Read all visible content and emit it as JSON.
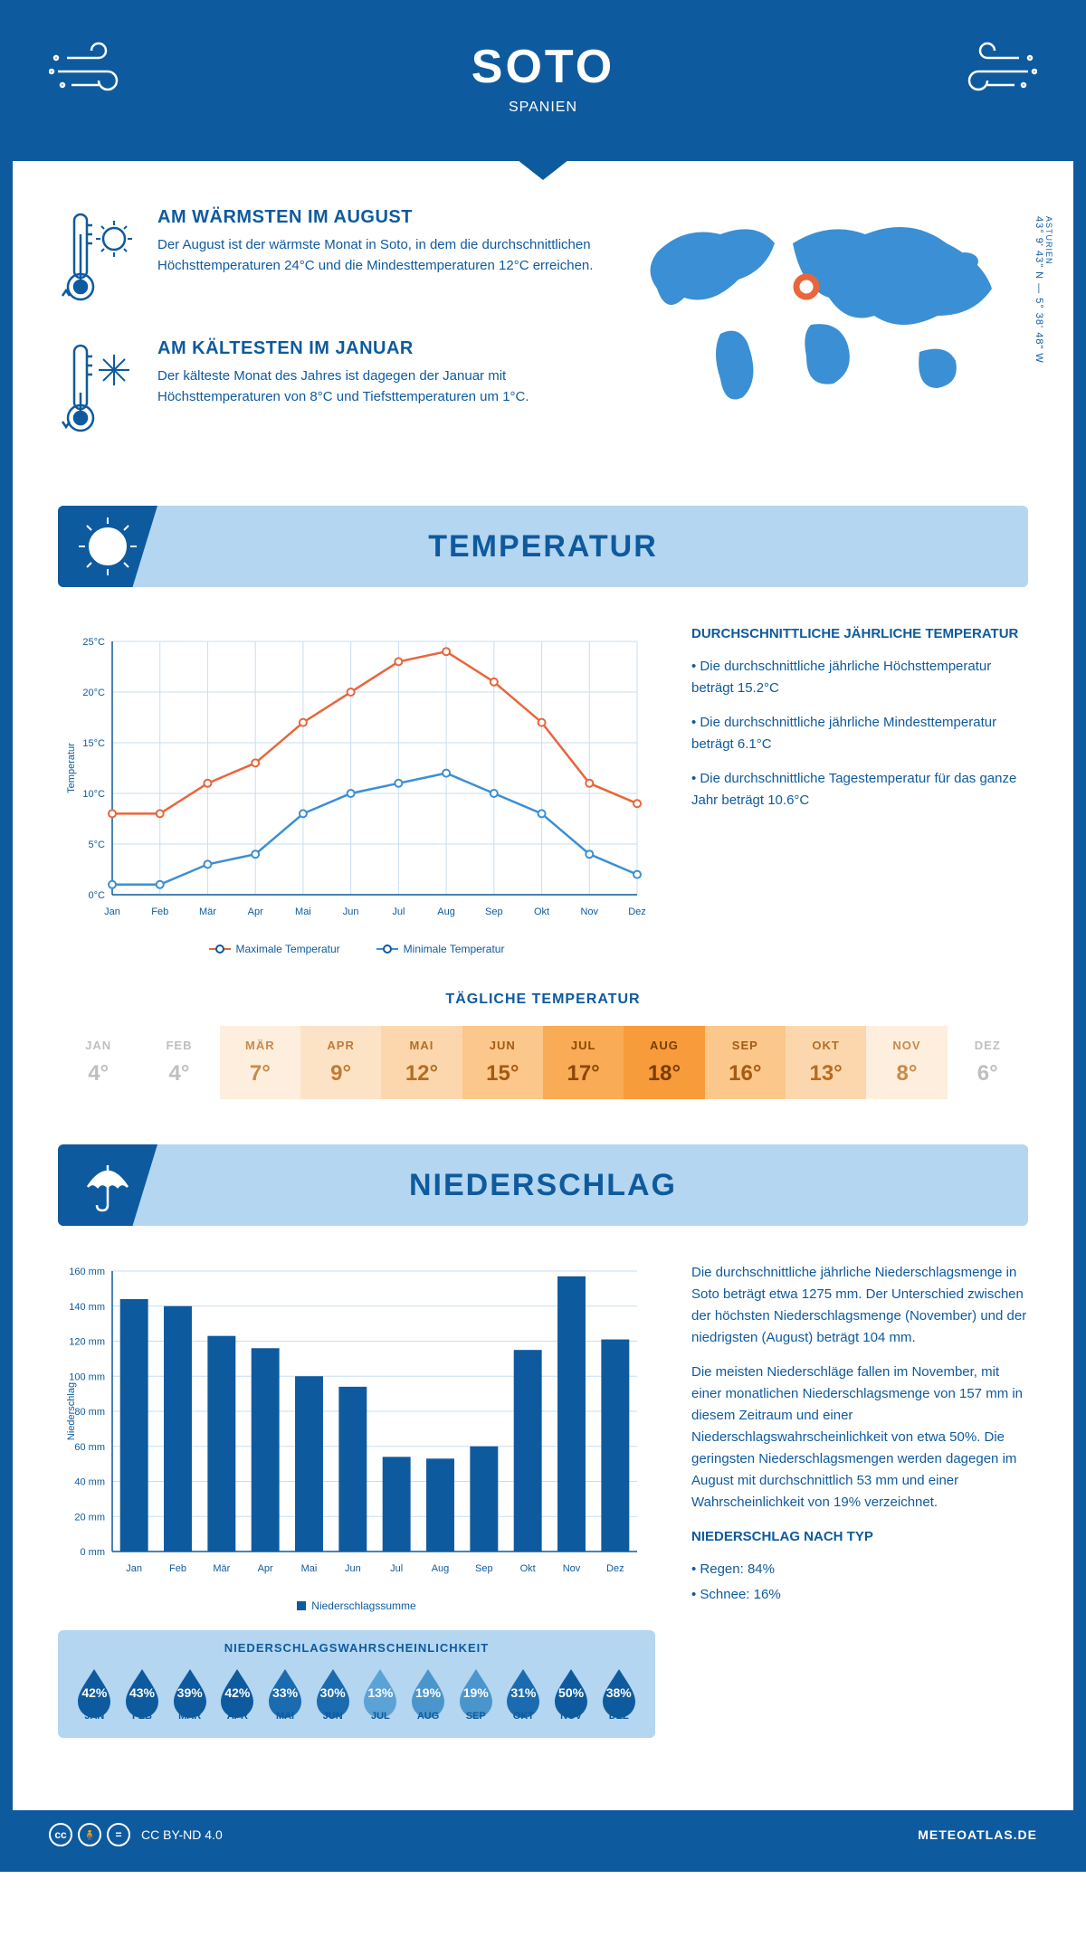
{
  "header": {
    "title": "SOTO",
    "subtitle": "SPANIEN"
  },
  "coords": {
    "region": "ASTURIEN",
    "lat": "43° 9' 43\" N",
    "lon": "5° 38' 48\" W"
  },
  "facts": {
    "warm": {
      "title": "AM WÄRMSTEN IM AUGUST",
      "text": "Der August ist der wärmste Monat in Soto, in dem die durchschnittlichen Höchsttemperaturen 24°C und die Mindesttemperaturen 12°C erreichen."
    },
    "cold": {
      "title": "AM KÄLTESTEN IM JANUAR",
      "text": "Der kälteste Monat des Jahres ist dagegen der Januar mit Höchsttemperaturen von 8°C und Tiefsttemperaturen um 1°C."
    }
  },
  "sections": {
    "temp": "TEMPERATUR",
    "precip": "NIEDERSCHLAG"
  },
  "temp_chart": {
    "type": "line",
    "months": [
      "Jan",
      "Feb",
      "Mär",
      "Apr",
      "Mai",
      "Jun",
      "Jul",
      "Aug",
      "Sep",
      "Okt",
      "Nov",
      "Dez"
    ],
    "max": [
      8,
      8,
      11,
      13,
      17,
      20,
      23,
      24,
      21,
      17,
      11,
      9
    ],
    "min": [
      1,
      1,
      3,
      4,
      8,
      10,
      11,
      12,
      10,
      8,
      4,
      2
    ],
    "ylim": [
      0,
      25
    ],
    "ytick_step": 5,
    "ylabel": "Temperatur",
    "max_color": "#e8663c",
    "min_color": "#3b8fd4",
    "grid_color": "#c9def0",
    "axis_color": "#0e5a9e",
    "legend": {
      "max": "Maximale Temperatur",
      "min": "Minimale Temperatur"
    }
  },
  "temp_side": {
    "title": "DURCHSCHNITTLICHE JÄHRLICHE TEMPERATUR",
    "bullets": [
      "• Die durchschnittliche jährliche Höchsttemperatur beträgt 15.2°C",
      "• Die durchschnittliche jährliche Mindesttemperatur beträgt 6.1°C",
      "• Die durchschnittliche Tagestemperatur für das ganze Jahr beträgt 10.6°C"
    ]
  },
  "daily": {
    "title": "TÄGLICHE TEMPERATUR",
    "months": [
      "JAN",
      "FEB",
      "MÄR",
      "APR",
      "MAI",
      "JUN",
      "JUL",
      "AUG",
      "SEP",
      "OKT",
      "NOV",
      "DEZ"
    ],
    "values": [
      "4°",
      "4°",
      "7°",
      "9°",
      "12°",
      "15°",
      "17°",
      "18°",
      "16°",
      "13°",
      "8°",
      "6°"
    ],
    "bg": [
      "#ffffff",
      "#ffffff",
      "#fdeedd",
      "#fde3c6",
      "#fcd7ad",
      "#fbc78b",
      "#f9ab55",
      "#f89b3a",
      "#fbc78b",
      "#fcd7ad",
      "#fdeedd",
      "#ffffff"
    ],
    "fg": [
      "#bfbfbf",
      "#bfbfbf",
      "#c88a4a",
      "#c07b35",
      "#b86c22",
      "#a65a12",
      "#8a4708",
      "#7a3d04",
      "#a65a12",
      "#b86c22",
      "#c88a4a",
      "#bfbfbf"
    ]
  },
  "precip_chart": {
    "type": "bar",
    "months": [
      "Jan",
      "Feb",
      "Mär",
      "Apr",
      "Mai",
      "Jun",
      "Jul",
      "Aug",
      "Sep",
      "Okt",
      "Nov",
      "Dez"
    ],
    "values": [
      144,
      140,
      123,
      116,
      100,
      94,
      54,
      53,
      60,
      115,
      157,
      121
    ],
    "ylim": [
      0,
      160
    ],
    "ytick_step": 20,
    "ylabel": "Niederschlag",
    "bar_color": "#0e5a9e",
    "grid_color": "#c9def0",
    "legend": "Niederschlagssumme"
  },
  "precip_side": {
    "p1": "Die durchschnittliche jährliche Niederschlagsmenge in Soto beträgt etwa 1275 mm. Der Unterschied zwischen der höchsten Niederschlagsmenge (November) und der niedrigsten (August) beträgt 104 mm.",
    "p2": "Die meisten Niederschläge fallen im November, mit einer monatlichen Niederschlagsmenge von 157 mm in diesem Zeitraum und einer Niederschlagswahrscheinlichkeit von etwa 50%. Die geringsten Niederschlagsmengen werden dagegen im August mit durchschnittlich 53 mm und einer Wahrscheinlichkeit von 19% verzeichnet.",
    "type_title": "NIEDERSCHLAG NACH TYP",
    "type_rain": "• Regen: 84%",
    "type_snow": "• Schnee: 16%"
  },
  "prob": {
    "title": "NIEDERSCHLAGSWAHRSCHEINLICHKEIT",
    "months": [
      "JAN",
      "FEB",
      "MÄR",
      "APR",
      "MAI",
      "JUN",
      "JUL",
      "AUG",
      "SEP",
      "OKT",
      "NOV",
      "DEZ"
    ],
    "pct": [
      "42%",
      "43%",
      "39%",
      "42%",
      "33%",
      "30%",
      "13%",
      "19%",
      "19%",
      "31%",
      "50%",
      "38%"
    ],
    "colors": [
      "#0e5a9e",
      "#0e5a9e",
      "#0e5a9e",
      "#0e5a9e",
      "#1a6bb0",
      "#1a6bb0",
      "#5ba3d6",
      "#4a96cc",
      "#4a96cc",
      "#1a6bb0",
      "#0e5a9e",
      "#0e5a9e"
    ]
  },
  "footer": {
    "license": "CC BY-ND 4.0",
    "brand": "METEOATLAS.DE"
  },
  "colors": {
    "primary": "#0e5a9e",
    "light": "#b4d6f0",
    "accent": "#e8663c"
  }
}
